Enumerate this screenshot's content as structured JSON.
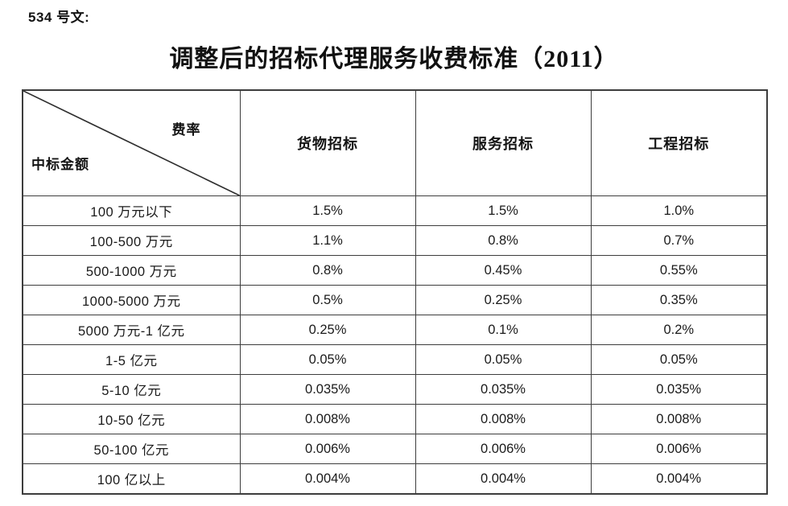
{
  "document": {
    "doc_number_label": "534 号文:",
    "title": "调整后的招标代理服务收费标准（2011）"
  },
  "table": {
    "corner": {
      "top_right": "费率",
      "bottom_left": "中标金额"
    },
    "columns": [
      "货物招标",
      "服务招标",
      "工程招标"
    ],
    "rows": [
      {
        "label": "100 万元以下",
        "values": [
          "1.5%",
          "1.5%",
          "1.0%"
        ]
      },
      {
        "label": "100-500 万元",
        "values": [
          "1.1%",
          "0.8%",
          "0.7%"
        ]
      },
      {
        "label": "500-1000 万元",
        "values": [
          "0.8%",
          "0.45%",
          "0.55%"
        ]
      },
      {
        "label": "1000-5000 万元",
        "values": [
          "0.5%",
          "0.25%",
          "0.35%"
        ]
      },
      {
        "label": "5000 万元-1 亿元",
        "values": [
          "0.25%",
          "0.1%",
          "0.2%"
        ]
      },
      {
        "label": "1-5 亿元",
        "values": [
          "0.05%",
          "0.05%",
          "0.05%"
        ]
      },
      {
        "label": "5-10 亿元",
        "values": [
          "0.035%",
          "0.035%",
          "0.035%"
        ]
      },
      {
        "label": "10-50 亿元",
        "values": [
          "0.008%",
          "0.008%",
          "0.008%"
        ]
      },
      {
        "label": "50-100 亿元",
        "values": [
          "0.006%",
          "0.006%",
          "0.006%"
        ]
      },
      {
        "label": "100 亿以上",
        "values": [
          "0.004%",
          "0.004%",
          "0.004%"
        ]
      }
    ]
  },
  "colors": {
    "background": "#ffffff",
    "border": "#3d3d3d",
    "text": "#161616"
  }
}
